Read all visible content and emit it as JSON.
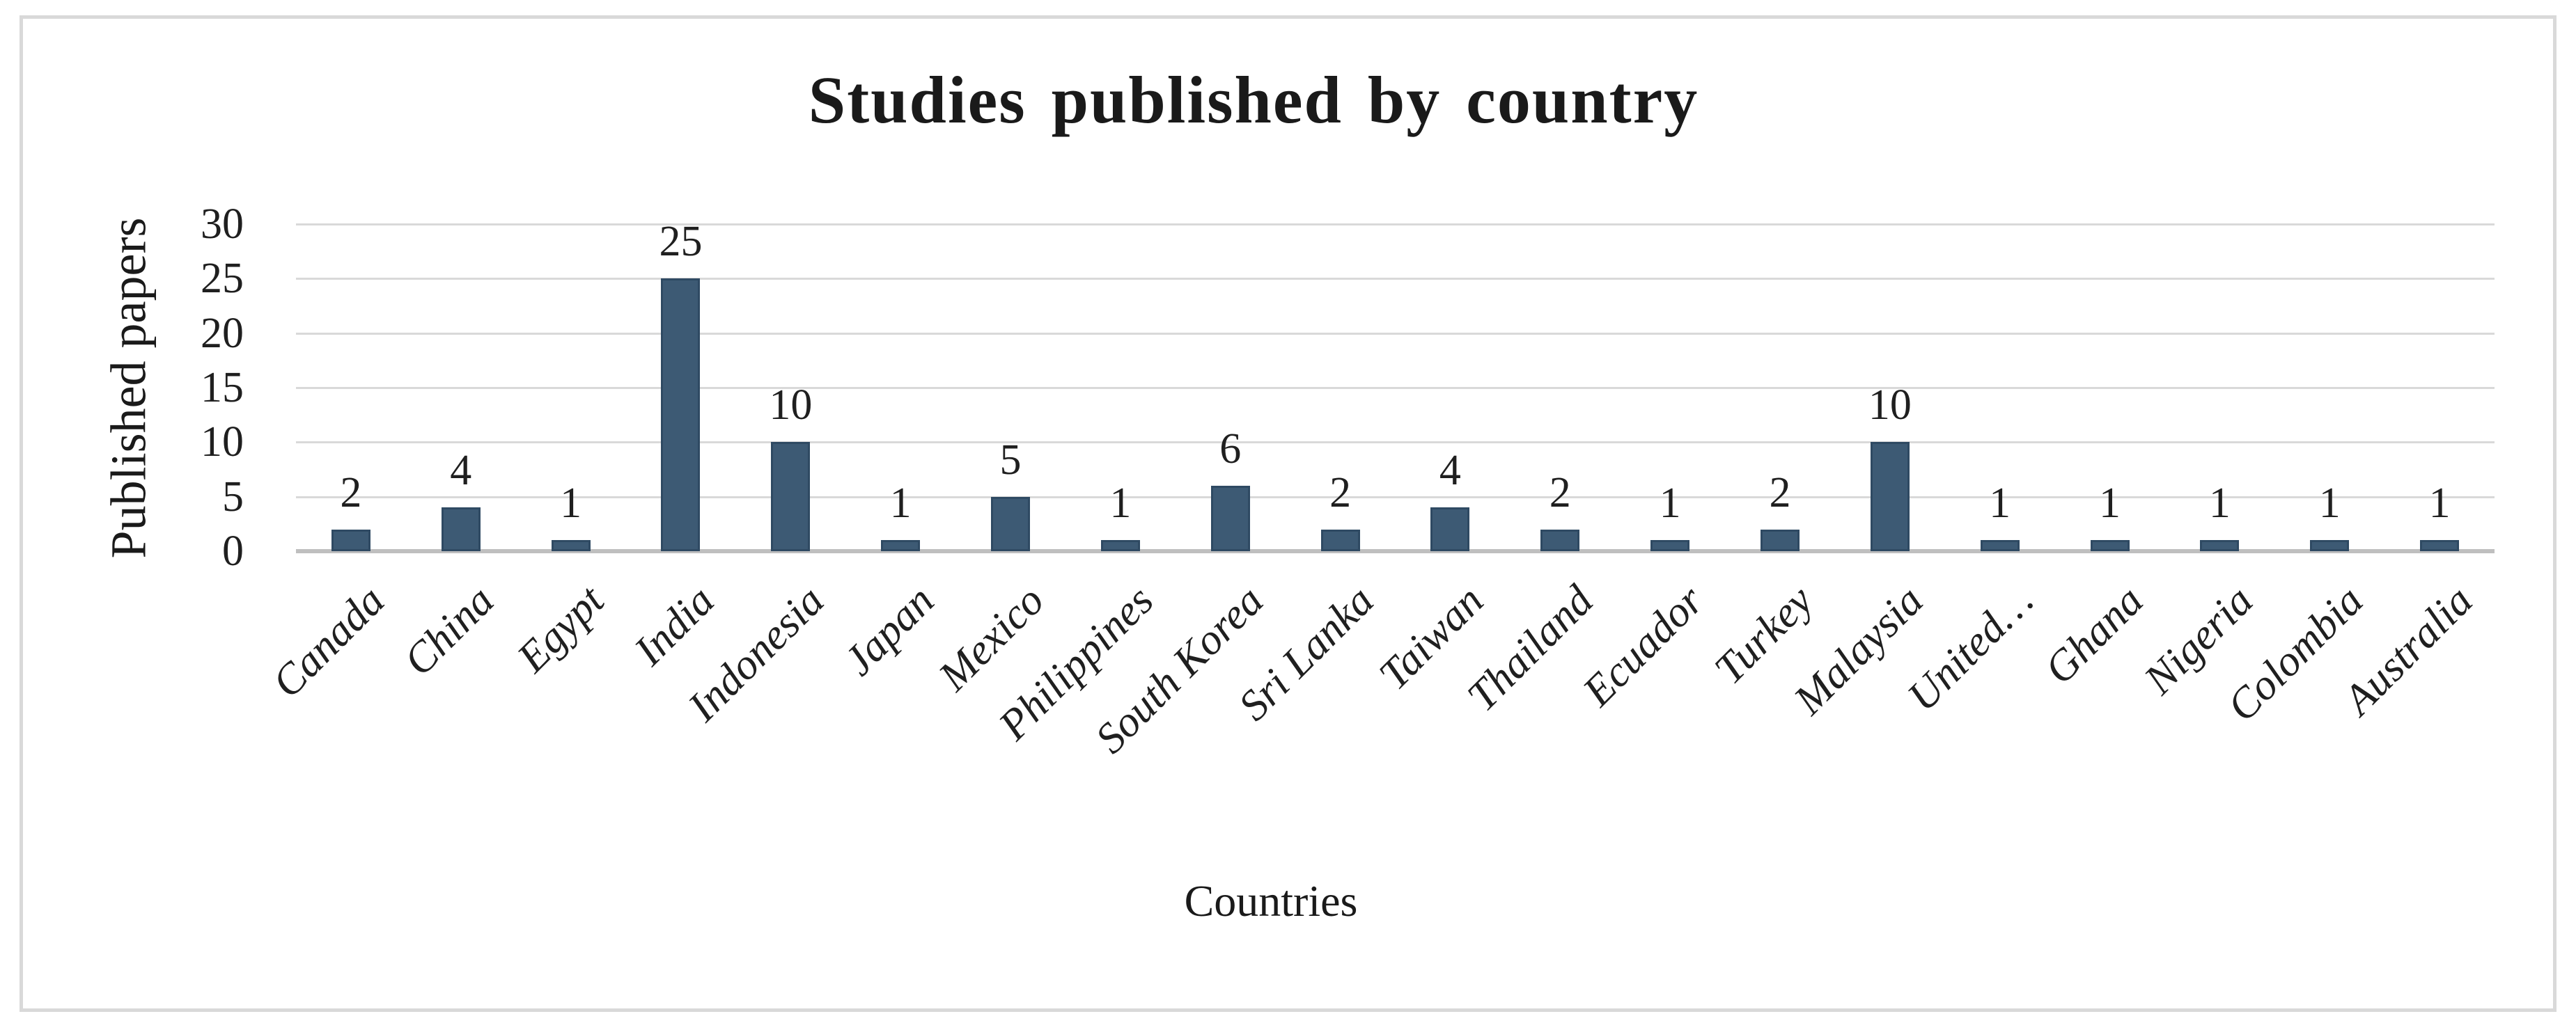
{
  "chart_data": {
    "type": "bar",
    "title": "Studies published by country",
    "xlabel": "Countries",
    "ylabel": "Published papers",
    "categories": [
      "Canada",
      "China",
      "Egypt",
      "India",
      "Indonesia",
      "Japan",
      "Mexico",
      "Philippines",
      "South Korea",
      "Sri Lanka",
      "Taiwan",
      "Thailand",
      "Ecuador",
      "Turkey",
      "Malaysia",
      "United…",
      "Ghana",
      "Nigeria",
      "Colombia",
      "Australia"
    ],
    "values": [
      2,
      4,
      1,
      25,
      10,
      1,
      5,
      1,
      6,
      2,
      4,
      2,
      1,
      2,
      10,
      1,
      1,
      1,
      1,
      1
    ],
    "ylim": [
      0,
      30
    ],
    "yticks": [
      0,
      5,
      10,
      15,
      20,
      25,
      30
    ],
    "data_labels_shown": true,
    "grid": "horizontal",
    "legend_position": "none",
    "bar_color": "#3d5a74",
    "bar_edge_color": "#2f4a63",
    "gridline_color": "#d9d9d9",
    "axis_line_color": "#bfbfbf",
    "frame_color": "#d9d9d9",
    "text_color": "#1f1f1f"
  }
}
